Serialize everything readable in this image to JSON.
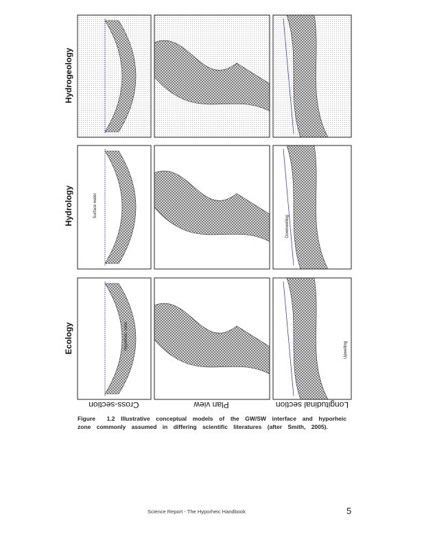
{
  "figure": {
    "row_labels": [
      "Hydrogeology",
      "Hydrology",
      "Ecology"
    ],
    "column_labels": [
      "Cross-section",
      "Plan view",
      "Longitudinal section"
    ],
    "panel_notes": [
      "Hyporheic zone",
      "Surface water",
      "Upwelling",
      "Downwelling"
    ]
  },
  "caption": {
    "label": "Figure 1.2",
    "text": "Illustrative conceptual models of the GW/SW interface and hyporheic zone commonly assumed in differing scientific literatures (after Smith, 2005)."
  },
  "footer": {
    "text": "Science Report - The Hyporheic Handbook",
    "page": "5"
  }
}
